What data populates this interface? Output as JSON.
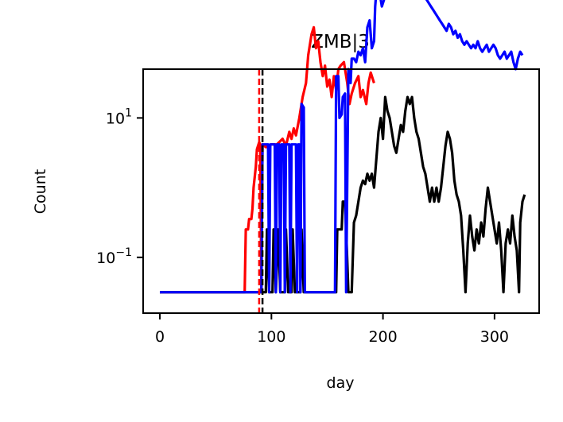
{
  "chart_data": {
    "type": "line",
    "title": "ZMB|3",
    "xlabel": "day",
    "ylabel": "Count",
    "xlim": [
      -15,
      340
    ],
    "yscale": "log",
    "ylim_log10": [
      -1.8,
      1.7
    ],
    "x_ticks": [
      0,
      100,
      200,
      300
    ],
    "x_tick_labels": [
      "0",
      "100",
      "200",
      "300"
    ],
    "y_ticks_log10": [
      -1,
      1
    ],
    "y_tick_bases": [
      "10",
      "10"
    ],
    "y_tick_exponents": [
      "−1",
      "1"
    ],
    "floor_log10": -1.5,
    "grid": false,
    "legend": "none",
    "vlines": [
      {
        "x": 89,
        "color": "#ff0000",
        "style": "dashed"
      },
      {
        "x": 92,
        "color": "#000000",
        "style": "dashed"
      }
    ],
    "series": [
      {
        "color": "#ff0000",
        "points": [
          [
            0,
            -1.5
          ],
          [
            76,
            -1.5
          ],
          [
            77,
            -0.6
          ],
          [
            79,
            -0.6
          ],
          [
            80,
            -0.45
          ],
          [
            82,
            -0.45
          ],
          [
            83,
            -0.3
          ],
          [
            84,
            0.0
          ],
          [
            86,
            0.3
          ],
          [
            87,
            0.55
          ],
          [
            89,
            0.65
          ],
          [
            90,
            0.62
          ],
          [
            91,
            -1.5
          ],
          [
            92,
            0.62
          ],
          [
            95,
            0.58
          ],
          [
            100,
            0.62
          ],
          [
            105,
            0.62
          ],
          [
            110,
            0.7
          ],
          [
            113,
            0.6
          ],
          [
            116,
            0.8
          ],
          [
            118,
            0.7
          ],
          [
            120,
            0.85
          ],
          [
            122,
            0.75
          ],
          [
            125,
            1.0
          ],
          [
            128,
            1.3
          ],
          [
            131,
            1.5
          ],
          [
            133,
            1.9
          ],
          [
            136,
            2.2
          ],
          [
            138,
            2.3
          ],
          [
            140,
            2.0
          ],
          [
            142,
            2.1
          ],
          [
            144,
            1.8
          ],
          [
            146,
            1.6
          ],
          [
            148,
            1.75
          ],
          [
            150,
            1.45
          ],
          [
            152,
            1.55
          ],
          [
            154,
            1.3
          ],
          [
            156,
            1.6
          ],
          [
            158,
            1.4
          ],
          [
            160,
            1.7
          ],
          [
            162,
            1.75
          ],
          [
            165,
            1.8
          ],
          [
            168,
            1.5
          ],
          [
            170,
            1.2
          ],
          [
            172,
            1.35
          ],
          [
            175,
            1.5
          ],
          [
            178,
            1.6
          ],
          [
            180,
            1.3
          ],
          [
            182,
            1.4
          ],
          [
            185,
            1.2
          ],
          [
            187,
            1.5
          ],
          [
            189,
            1.65
          ],
          [
            192,
            1.5
          ]
        ]
      },
      {
        "color": "#000000",
        "points": [
          [
            0,
            -1.5
          ],
          [
            95,
            -1.5
          ],
          [
            96,
            -0.6
          ],
          [
            98,
            -1.5
          ],
          [
            101,
            -1.5
          ],
          [
            102,
            -0.6
          ],
          [
            104,
            -1.5
          ],
          [
            106,
            -0.6
          ],
          [
            108,
            -1.5
          ],
          [
            112,
            -1.5
          ],
          [
            113,
            -0.6
          ],
          [
            115,
            -1.5
          ],
          [
            118,
            -1.5
          ],
          [
            119,
            -0.6
          ],
          [
            121,
            -1.5
          ],
          [
            126,
            -1.5
          ],
          [
            127,
            -0.6
          ],
          [
            129,
            -1.5
          ],
          [
            158,
            -1.5
          ],
          [
            159,
            -0.6
          ],
          [
            163,
            -0.6
          ],
          [
            164,
            -0.2
          ],
          [
            166,
            -0.2
          ],
          [
            167,
            -0.6
          ],
          [
            169,
            -1.5
          ],
          [
            172,
            -1.5
          ],
          [
            174,
            -0.5
          ],
          [
            176,
            -0.4
          ],
          [
            178,
            -0.2
          ],
          [
            180,
            0.0
          ],
          [
            182,
            0.1
          ],
          [
            184,
            0.05
          ],
          [
            186,
            0.2
          ],
          [
            188,
            0.1
          ],
          [
            190,
            0.2
          ],
          [
            192,
            0.0
          ],
          [
            194,
            0.4
          ],
          [
            196,
            0.8
          ],
          [
            198,
            1.0
          ],
          [
            200,
            0.7
          ],
          [
            202,
            1.3
          ],
          [
            204,
            1.1
          ],
          [
            206,
            1.0
          ],
          [
            208,
            0.8
          ],
          [
            210,
            0.6
          ],
          [
            212,
            0.5
          ],
          [
            214,
            0.7
          ],
          [
            216,
            0.9
          ],
          [
            218,
            0.8
          ],
          [
            220,
            1.1
          ],
          [
            222,
            1.3
          ],
          [
            224,
            1.2
          ],
          [
            226,
            1.3
          ],
          [
            228,
            1.0
          ],
          [
            230,
            0.8
          ],
          [
            232,
            0.7
          ],
          [
            234,
            0.5
          ],
          [
            236,
            0.3
          ],
          [
            238,
            0.2
          ],
          [
            240,
            0.0
          ],
          [
            242,
            -0.2
          ],
          [
            244,
            0.0
          ],
          [
            246,
            -0.2
          ],
          [
            248,
            0.0
          ],
          [
            250,
            -0.2
          ],
          [
            252,
            0.0
          ],
          [
            254,
            0.3
          ],
          [
            256,
            0.6
          ],
          [
            258,
            0.8
          ],
          [
            260,
            0.7
          ],
          [
            262,
            0.5
          ],
          [
            264,
            0.1
          ],
          [
            266,
            -0.1
          ],
          [
            268,
            -0.2
          ],
          [
            270,
            -0.4
          ],
          [
            272,
            -0.9
          ],
          [
            274,
            -1.5
          ],
          [
            276,
            -0.8
          ],
          [
            278,
            -0.4
          ],
          [
            280,
            -0.7
          ],
          [
            282,
            -0.9
          ],
          [
            284,
            -0.6
          ],
          [
            286,
            -0.8
          ],
          [
            288,
            -0.5
          ],
          [
            290,
            -0.7
          ],
          [
            292,
            -0.3
          ],
          [
            294,
            0.0
          ],
          [
            296,
            -0.2
          ],
          [
            298,
            -0.4
          ],
          [
            300,
            -0.6
          ],
          [
            302,
            -0.8
          ],
          [
            304,
            -0.5
          ],
          [
            306,
            -0.9
          ],
          [
            308,
            -1.5
          ],
          [
            310,
            -0.8
          ],
          [
            312,
            -0.6
          ],
          [
            314,
            -0.8
          ],
          [
            316,
            -0.4
          ],
          [
            318,
            -0.7
          ],
          [
            320,
            -0.9
          ],
          [
            322,
            -1.5
          ],
          [
            323,
            -0.5
          ],
          [
            325,
            -0.2
          ],
          [
            327,
            -0.1
          ]
        ]
      },
      {
        "color": "#0000ff",
        "points": [
          [
            0,
            -1.5
          ],
          [
            91,
            -1.5
          ],
          [
            92,
            0.62
          ],
          [
            97,
            0.62
          ],
          [
            98,
            -1.5
          ],
          [
            99,
            0.62
          ],
          [
            103,
            0.62
          ],
          [
            104,
            -1.5
          ],
          [
            105,
            0.62
          ],
          [
            107,
            0.62
          ],
          [
            108,
            -1.5
          ],
          [
            109,
            0.62
          ],
          [
            111,
            0.62
          ],
          [
            112,
            -1.5
          ],
          [
            113,
            0.62
          ],
          [
            116,
            0.62
          ],
          [
            117,
            -1.5
          ],
          [
            118,
            0.62
          ],
          [
            122,
            0.62
          ],
          [
            123,
            -1.5
          ],
          [
            124,
            0.62
          ],
          [
            125,
            0.62
          ],
          [
            126,
            -1.5
          ],
          [
            127,
            1.2
          ],
          [
            129,
            1.15
          ],
          [
            130,
            -1.5
          ],
          [
            131,
            -1.5
          ],
          [
            133,
            -1.5
          ],
          [
            157,
            -1.5
          ],
          [
            158,
            1.6
          ],
          [
            160,
            1.6
          ],
          [
            161,
            1.0
          ],
          [
            163,
            1.05
          ],
          [
            164,
            1.3
          ],
          [
            166,
            1.35
          ],
          [
            167,
            -1.5
          ],
          [
            169,
            1.7
          ],
          [
            171,
            1.5
          ],
          [
            172,
            1.85
          ],
          [
            174,
            1.85
          ],
          [
            176,
            1.8
          ],
          [
            178,
            1.95
          ],
          [
            180,
            1.9
          ],
          [
            182,
            2.0
          ],
          [
            184,
            1.8
          ],
          [
            186,
            2.3
          ],
          [
            188,
            2.4
          ],
          [
            190,
            2.0
          ],
          [
            192,
            2.1
          ],
          [
            193,
            2.6
          ],
          [
            195,
            3.0
          ],
          [
            197,
            2.8
          ],
          [
            199,
            2.6
          ],
          [
            201,
            2.7
          ],
          [
            203,
            2.75
          ],
          [
            205,
            2.8
          ],
          [
            207,
            2.85
          ],
          [
            209,
            2.9
          ],
          [
            211,
            2.95
          ],
          [
            213,
            3.05
          ],
          [
            215,
            3.0
          ],
          [
            217,
            2.95
          ],
          [
            219,
            3.0
          ],
          [
            221,
            2.9
          ],
          [
            223,
            2.95
          ],
          [
            225,
            2.85
          ],
          [
            227,
            2.8
          ],
          [
            229,
            2.9
          ],
          [
            231,
            2.95
          ],
          [
            233,
            2.85
          ],
          [
            235,
            2.9
          ],
          [
            237,
            2.8
          ],
          [
            239,
            2.7
          ],
          [
            241,
            2.65
          ],
          [
            243,
            2.6
          ],
          [
            245,
            2.55
          ],
          [
            247,
            2.5
          ],
          [
            249,
            2.45
          ],
          [
            251,
            2.4
          ],
          [
            253,
            2.35
          ],
          [
            255,
            2.3
          ],
          [
            257,
            2.25
          ],
          [
            259,
            2.35
          ],
          [
            261,
            2.3
          ],
          [
            263,
            2.2
          ],
          [
            265,
            2.25
          ],
          [
            267,
            2.15
          ],
          [
            269,
            2.2
          ],
          [
            271,
            2.1
          ],
          [
            273,
            2.05
          ],
          [
            275,
            2.1
          ],
          [
            277,
            2.05
          ],
          [
            279,
            2.0
          ],
          [
            281,
            2.05
          ],
          [
            283,
            2.0
          ],
          [
            285,
            2.1
          ],
          [
            287,
            2.0
          ],
          [
            289,
            1.95
          ],
          [
            291,
            2.0
          ],
          [
            293,
            2.05
          ],
          [
            295,
            1.95
          ],
          [
            297,
            2.0
          ],
          [
            299,
            2.05
          ],
          [
            301,
            2.0
          ],
          [
            303,
            1.9
          ],
          [
            305,
            1.85
          ],
          [
            307,
            1.9
          ],
          [
            309,
            1.95
          ],
          [
            311,
            1.85
          ],
          [
            313,
            1.9
          ],
          [
            315,
            1.95
          ],
          [
            317,
            1.8
          ],
          [
            319,
            1.7
          ],
          [
            321,
            1.85
          ],
          [
            323,
            1.95
          ],
          [
            325,
            1.9
          ]
        ]
      }
    ]
  }
}
